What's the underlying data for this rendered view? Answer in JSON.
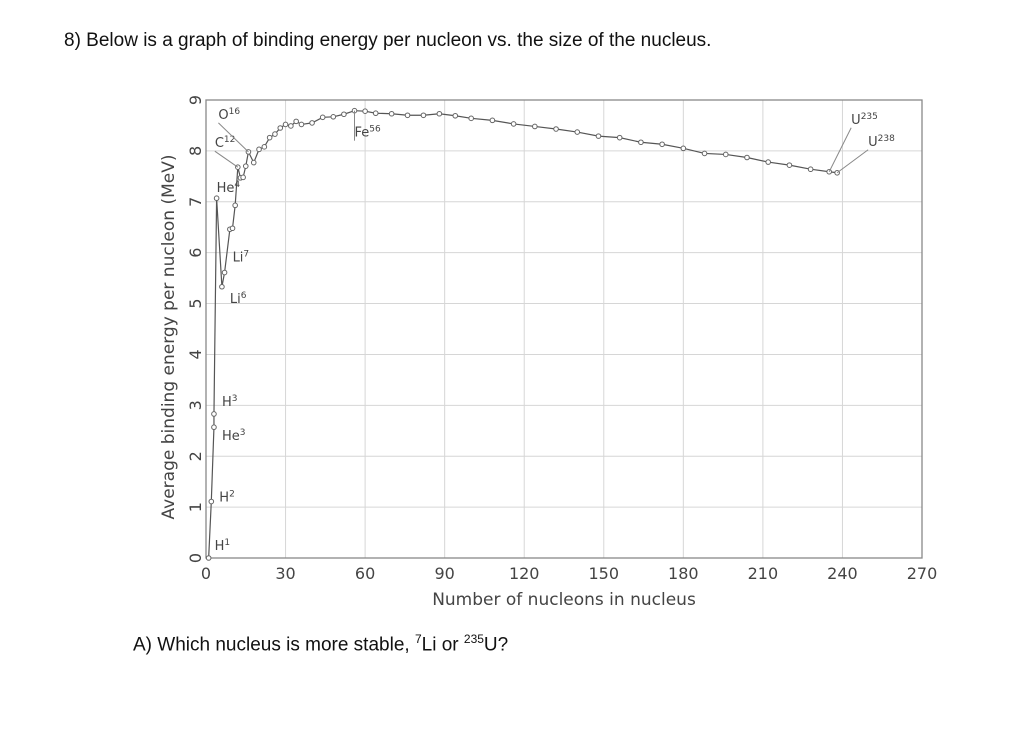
{
  "question": {
    "title": "8) Below is a graph of binding energy per nucleon vs. the size of the nucleus.",
    "a_prefix": "A) Which nucleus is more stable, ",
    "a_sup1": "7",
    "a_mid": "Li or ",
    "a_sup2": "235",
    "a_suffix": "U?"
  },
  "chart_data": {
    "type": "line",
    "title": "",
    "xlabel": "Number of nucleons in nucleus",
    "ylabel": "Average binding energy per nucleon (MeV)",
    "xlim": [
      0,
      270
    ],
    "ylim": [
      0,
      9
    ],
    "xticks": [
      0,
      30,
      60,
      90,
      120,
      150,
      180,
      210,
      240,
      270
    ],
    "yticks": [
      0,
      1,
      2,
      3,
      4,
      5,
      6,
      7,
      8,
      9
    ],
    "grid": true,
    "legend": "none",
    "line_color": "#555555",
    "marker_color": "#666666",
    "series": [
      {
        "x": [
          1,
          2,
          3,
          3,
          4,
          6,
          7,
          9,
          10,
          11,
          12,
          13,
          14,
          15,
          16,
          18,
          20,
          22,
          24,
          26,
          28,
          30,
          32,
          34,
          36,
          40,
          44,
          48,
          52,
          56,
          60,
          64,
          70,
          76,
          82,
          88,
          94,
          100,
          108,
          116,
          124,
          132,
          140,
          148,
          156,
          164,
          172,
          180,
          188,
          196,
          204,
          212,
          220,
          228,
          235,
          238
        ],
        "y": [
          0,
          1.11,
          2.57,
          2.83,
          7.07,
          5.33,
          5.61,
          6.46,
          6.48,
          6.93,
          7.68,
          7.47,
          7.48,
          7.7,
          7.98,
          7.77,
          8.03,
          8.08,
          8.26,
          8.33,
          8.45,
          8.52,
          8.49,
          8.58,
          8.52,
          8.55,
          8.66,
          8.67,
          8.72,
          8.79,
          8.78,
          8.74,
          8.73,
          8.7,
          8.7,
          8.73,
          8.69,
          8.64,
          8.6,
          8.53,
          8.48,
          8.43,
          8.37,
          8.29,
          8.26,
          8.17,
          8.13,
          8.05,
          7.95,
          7.93,
          7.87,
          7.78,
          7.72,
          7.64,
          7.59,
          7.57
        ]
      }
    ],
    "annotations": [
      {
        "label": "H",
        "sup": "1",
        "x": 1,
        "y": 0
      },
      {
        "label": "H",
        "sup": "2",
        "x": 2,
        "y": 1.11
      },
      {
        "label": "H",
        "sup": "3",
        "x": 3,
        "y": 2.83
      },
      {
        "label": "He",
        "sup": "3",
        "x": 3,
        "y": 2.57
      },
      {
        "label": "He",
        "sup": "4",
        "x": 4,
        "y": 7.07
      },
      {
        "label": "Li",
        "sup": "7",
        "x": 7,
        "y": 5.61
      },
      {
        "label": "Li",
        "sup": "6",
        "x": 6,
        "y": 5.33
      },
      {
        "label": "C",
        "sup": "12",
        "x": 12,
        "y": 7.68
      },
      {
        "label": "O",
        "sup": "16",
        "x": 16,
        "y": 7.98
      },
      {
        "label": "Fe",
        "sup": "56",
        "x": 56,
        "y": 8.79
      },
      {
        "label": "U",
        "sup": "235",
        "x": 235,
        "y": 7.59
      },
      {
        "label": "U",
        "sup": "238",
        "x": 238,
        "y": 7.57
      }
    ]
  }
}
